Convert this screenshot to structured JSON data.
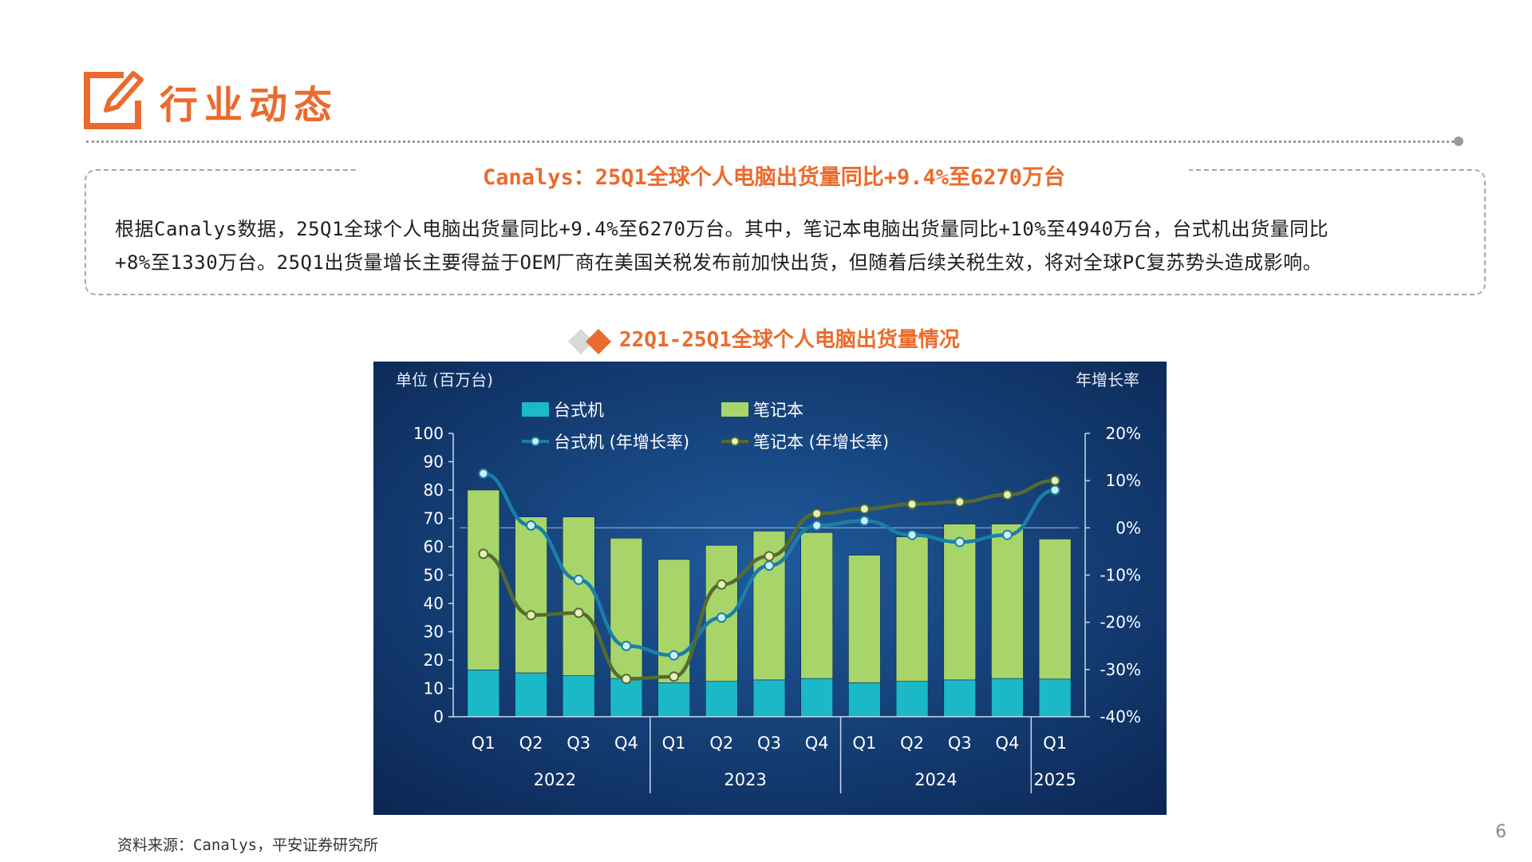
{
  "header": {
    "title": "行业动态",
    "icon": "edit-pencil-icon"
  },
  "summary": {
    "title": "Canalys：25Q1全球个人电脑出货量同比+9.4%至6270万台",
    "line1": "根据Canalys数据，25Q1全球个人电脑出货量同比+9.4%至6270万台。其中，笔记本电脑出货量同比+10%至4940万台，台式机出货量同比",
    "line2": "+8%至1330万台。25Q1出货量增长主要得益于OEM厂商在美国关税发布前加快出货，但随着后续关税生效，将对全球PC复苏势头造成影响。"
  },
  "chart_heading": "22Q1-25Q1全球个人电脑出货量情况",
  "chart_data": {
    "type": "bar",
    "left_axis_title": "单位 (百万台)",
    "right_axis_title": "年增长率",
    "categories": [
      "Q1",
      "Q2",
      "Q3",
      "Q4",
      "Q1",
      "Q2",
      "Q3",
      "Q4",
      "Q1",
      "Q2",
      "Q3",
      "Q4",
      "Q1"
    ],
    "years": [
      {
        "label": "2022",
        "count": 4
      },
      {
        "label": "2023",
        "count": 4
      },
      {
        "label": "2024",
        "count": 4
      },
      {
        "label": "2025",
        "count": 1
      }
    ],
    "series": [
      {
        "name": "台式机",
        "kind": "bar",
        "stack": "total",
        "color": "#1bb8c8",
        "values": [
          16.5,
          15.5,
          14.5,
          13.5,
          12.0,
          12.5,
          13.0,
          13.5,
          12.0,
          12.5,
          13.0,
          13.5,
          13.3
        ]
      },
      {
        "name": "笔记本",
        "kind": "bar",
        "stack": "total",
        "color": "#a8d56a",
        "values": [
          63.5,
          55.0,
          56.0,
          49.5,
          43.5,
          48.0,
          52.5,
          51.5,
          45.0,
          51.0,
          55.0,
          54.5,
          49.4
        ]
      },
      {
        "name": "台式机 (年增长率)",
        "kind": "line",
        "axis": "right",
        "color": "#1a7fa8",
        "marker": "#cfeff5",
        "values": [
          11.5,
          0.5,
          -11,
          -25,
          -27,
          -19,
          -8,
          0.5,
          1.5,
          -1.5,
          -3,
          -1.5,
          8
        ]
      },
      {
        "name": "笔记本 (年增长率)",
        "kind": "line",
        "axis": "right",
        "color": "#556b2f",
        "marker": "#e8f0b8",
        "values": [
          -5.5,
          -18.5,
          -18,
          -32,
          -31.5,
          -12,
          -6,
          3,
          4,
          5,
          5.5,
          7,
          10
        ]
      }
    ],
    "left_axis": {
      "min": 0,
      "max": 100,
      "ticks": [
        "100",
        "90",
        "80",
        "70",
        "60",
        "50",
        "40",
        "30",
        "20",
        "10",
        "0"
      ]
    },
    "right_axis": {
      "min": -40,
      "max": 20,
      "ticks": [
        "20%",
        "10%",
        "0%",
        "-10%",
        "-20%",
        "-30%",
        "-40%"
      ]
    },
    "legend_position": "top",
    "colors": {
      "background_center": "#1f5a9c",
      "background_edge": "#0b2552"
    }
  },
  "source": "资料来源：Canalys，平安证券研究所",
  "page_number": "6"
}
